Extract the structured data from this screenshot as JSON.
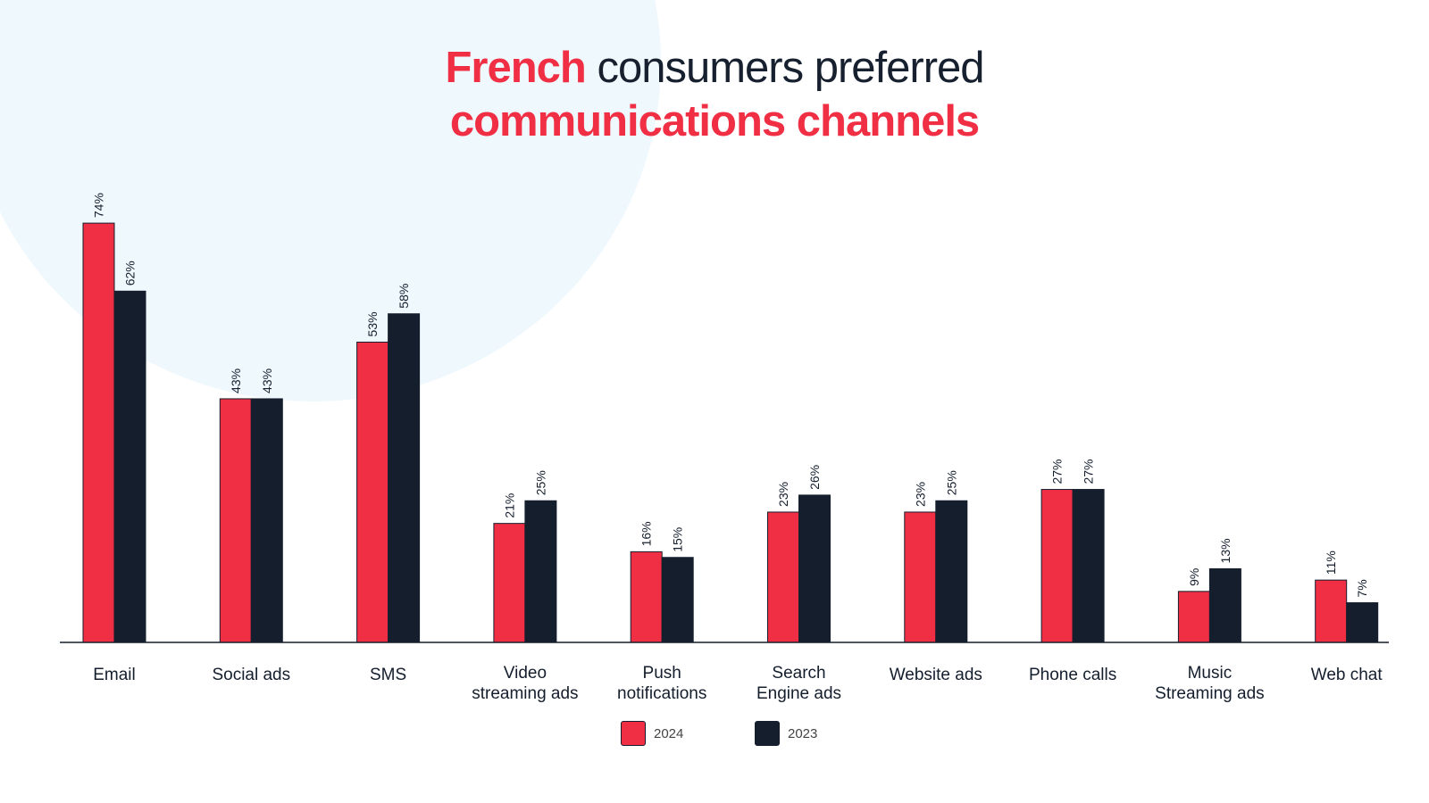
{
  "title": {
    "highlight": "French",
    "rest_line1": " consumers preferred",
    "line2": "communications channels"
  },
  "colors": {
    "accent": "#f02e44",
    "dark": "#141e2d",
    "background_circle": "#eff8fd"
  },
  "chart_data": {
    "type": "bar",
    "categories": [
      "Email",
      "Social ads",
      "SMS",
      "Video streaming ads",
      "Push notifications",
      "Search Engine ads",
      "Website ads",
      "Phone calls",
      "Music Streaming ads",
      "Web chat"
    ],
    "category_lines": [
      [
        "Email"
      ],
      [
        "Social ads"
      ],
      [
        "SMS"
      ],
      [
        "Video",
        "streaming ads"
      ],
      [
        "Push",
        "notifications"
      ],
      [
        "Search",
        "Engine ads"
      ],
      [
        "Website ads"
      ],
      [
        "Phone calls"
      ],
      [
        "Music",
        "Streaming ads"
      ],
      [
        "Web chat"
      ]
    ],
    "series": [
      {
        "name": "2024",
        "values": [
          74,
          43,
          53,
          21,
          16,
          23,
          23,
          27,
          9,
          11
        ],
        "labels": [
          "74%",
          "43%",
          "53%",
          "21%",
          "16%",
          "23%",
          "23%",
          "27%",
          "9%",
          "11%"
        ],
        "color": "#f02e44"
      },
      {
        "name": "2023",
        "values": [
          62,
          43,
          58,
          25,
          15,
          26,
          25,
          27,
          13,
          7
        ],
        "labels": [
          "62%",
          "43%",
          "58%",
          "25%",
          "15%",
          "26%",
          "25%",
          "27%",
          "13%",
          "7%"
        ],
        "color": "#141e2d"
      }
    ],
    "ylim": [
      0,
      100
    ],
    "legend_position": "bottom-center",
    "grid": false
  }
}
